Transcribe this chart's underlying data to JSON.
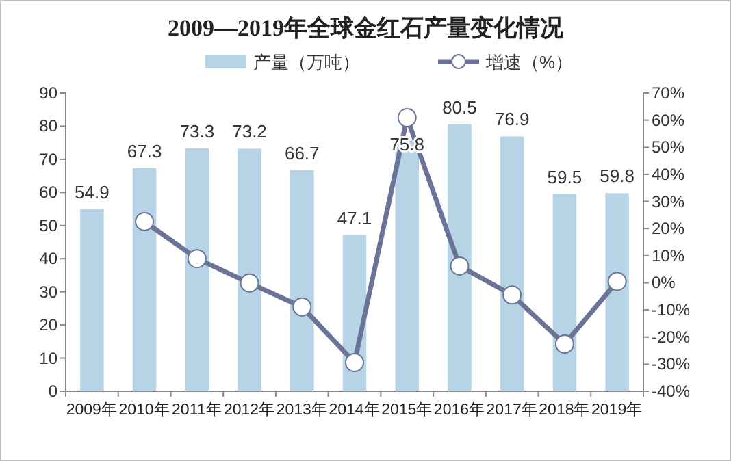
{
  "chart_data": {
    "type": "bar",
    "title": "2009—2019年全球金红石产量变化情况",
    "categories": [
      "2009年",
      "2010年",
      "2011年",
      "2012年",
      "2013年",
      "2014年",
      "2015年",
      "2016年",
      "2017年",
      "2018年",
      "2019年"
    ],
    "series": [
      {
        "name": "产量（万吨）",
        "type": "bar",
        "color": "#b7d4e6",
        "values": [
          54.9,
          67.3,
          73.3,
          73.2,
          66.7,
          47.1,
          75.8,
          80.5,
          76.9,
          59.5,
          59.8
        ],
        "value_labels": [
          "54.9",
          "67.3",
          "73.3",
          "73.2",
          "66.7",
          "47.1",
          "75.8",
          "80.5",
          "76.9",
          "59.5",
          "59.8"
        ]
      },
      {
        "name": "增速（%）",
        "type": "line",
        "axis": "y2",
        "color": "#6b7398",
        "marker": "circle",
        "values": [
          null,
          22.6,
          8.9,
          -0.1,
          -8.9,
          -29.4,
          60.9,
          6.2,
          -4.5,
          -22.6,
          0.5
        ]
      }
    ],
    "ylim": [
      0,
      90
    ],
    "yticks": [
      0,
      10,
      20,
      30,
      40,
      50,
      60,
      70,
      80,
      90
    ],
    "y2lim": [
      -40,
      70
    ],
    "y2ticks": [
      {
        "value": -40,
        "label": "-40%"
      },
      {
        "value": -30,
        "label": "-30%"
      },
      {
        "value": -20,
        "label": "-20%"
      },
      {
        "value": -10,
        "label": "-10%"
      },
      {
        "value": 0,
        "label": "0%"
      },
      {
        "value": 10,
        "label": "10%"
      },
      {
        "value": 20,
        "label": "20%"
      },
      {
        "value": 30,
        "label": "30%"
      },
      {
        "value": 40,
        "label": "40%"
      },
      {
        "value": 50,
        "label": "50%"
      },
      {
        "value": 60,
        "label": "60%"
      },
      {
        "value": 70,
        "label": "70%"
      }
    ],
    "grid": false,
    "legend": "top"
  }
}
